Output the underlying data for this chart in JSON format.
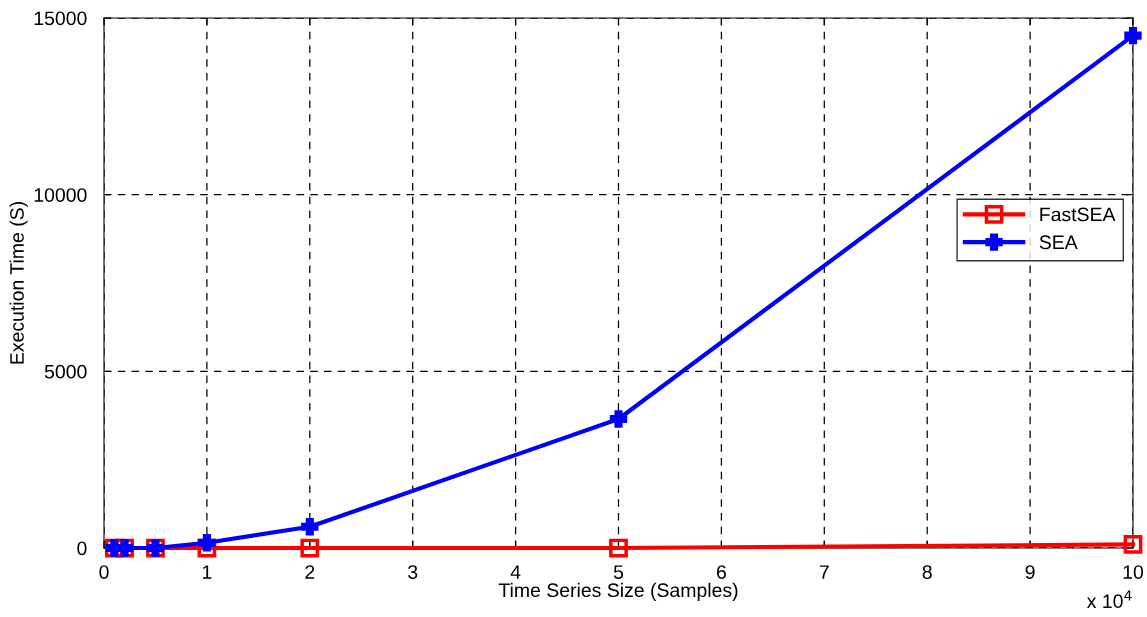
{
  "chart_data": {
    "type": "line",
    "xlabel": "Time Series Size (Samples)",
    "ylabel": "Execution Time (S)",
    "x": [
      0.1,
      0.2,
      0.5,
      1,
      2,
      5,
      10
    ],
    "series": [
      {
        "name": "FastSEA",
        "color": "#ff0000",
        "marker": "square",
        "values": [
          0,
          0,
          0,
          0,
          0,
          0,
          100
        ]
      },
      {
        "name": "SEA",
        "color": "#0000ff",
        "marker": "cross",
        "values": [
          0,
          0,
          0,
          150,
          600,
          3650,
          14500
        ]
      }
    ],
    "xlim": [
      0,
      10
    ],
    "xticks": [
      0,
      1,
      2,
      3,
      4,
      5,
      6,
      7,
      8,
      9,
      10
    ],
    "ylim": [
      0,
      15000
    ],
    "yticks": [
      0,
      5000,
      10000,
      15000
    ],
    "annotations": [
      "x 10$^{4}$"
    ],
    "grid": true,
    "legend": "right",
    "line_style": "solid"
  }
}
